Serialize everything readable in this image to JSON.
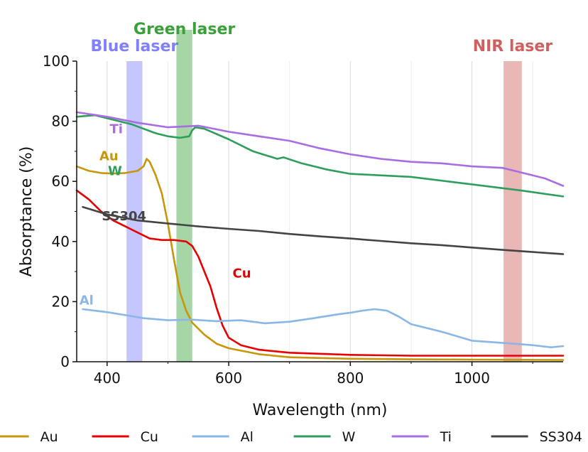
{
  "chart_data": {
    "type": "line",
    "title": "",
    "xlabel": "Wavelength (nm)",
    "ylabel": "Absorptance (%)",
    "xlim": [
      350,
      1150
    ],
    "ylim": [
      0,
      100
    ],
    "xticks": [
      400,
      600,
      800,
      1000
    ],
    "yticks": [
      0,
      20,
      40,
      60,
      80,
      100
    ],
    "grid": "vertical",
    "legend_position": "bottom",
    "bands": [
      {
        "name": "Blue laser",
        "range": [
          432,
          458
        ],
        "color": "#8080ff"
      },
      {
        "name": "Green laser",
        "range": [
          514,
          540
        ],
        "color": "#3aa13a"
      },
      {
        "name": "NIR laser",
        "range": [
          1052,
          1082
        ],
        "color": "#d06060"
      }
    ],
    "series": [
      {
        "name": "Au",
        "color": "#c8960a",
        "label_at": [
          378,
          67
        ],
        "x": [
          350,
          370,
          390,
          410,
          430,
          450,
          460,
          465,
          470,
          480,
          490,
          500,
          510,
          520,
          530,
          540,
          560,
          580,
          600,
          650,
          700,
          800,
          900,
          1000,
          1150
        ],
        "y": [
          65,
          63.5,
          62.8,
          62.6,
          62.8,
          63.5,
          65,
          67.5,
          66.5,
          62,
          56,
          46,
          34,
          23,
          17,
          13,
          9,
          6,
          4.5,
          2.5,
          1.5,
          1,
          0.8,
          0.7,
          0.6
        ]
      },
      {
        "name": "Cu",
        "color": "#e80000",
        "label_at": [
          597,
          28
        ],
        "x": [
          350,
          370,
          390,
          410,
          430,
          450,
          470,
          490,
          510,
          530,
          540,
          550,
          560,
          570,
          580,
          590,
          600,
          620,
          650,
          700,
          800,
          900,
          1000,
          1150
        ],
        "y": [
          57,
          54,
          50,
          47,
          45,
          43,
          41,
          40.5,
          40.5,
          40,
          38.5,
          35,
          30,
          25,
          18,
          12,
          8,
          5.5,
          4,
          3,
          2.3,
          2,
          2,
          2
        ]
      },
      {
        "name": "Al",
        "color": "#8ab6e8",
        "label_at": [
          345,
          19
        ],
        "x": [
          360,
          400,
          430,
          460,
          500,
          540,
          580,
          620,
          660,
          700,
          740,
          780,
          800,
          820,
          840,
          860,
          880,
          900,
          950,
          1000,
          1050,
          1100,
          1130,
          1150
        ],
        "y": [
          17.5,
          16.5,
          15.5,
          14.5,
          13.8,
          14,
          13.5,
          13.8,
          12.8,
          13.3,
          14.5,
          15.8,
          16.3,
          17,
          17.5,
          17,
          15,
          12.5,
          10,
          7,
          6.3,
          5.5,
          4.8,
          5.2
        ]
      },
      {
        "name": "W",
        "color": "#2e9e5c",
        "label_at": [
          392,
          62
        ],
        "x": [
          350,
          380,
          400,
          420,
          440,
          460,
          480,
          500,
          520,
          535,
          540,
          545,
          560,
          600,
          640,
          680,
          690,
          720,
          760,
          800,
          900,
          1000,
          1080,
          1150
        ],
        "y": [
          81.5,
          82,
          81,
          80,
          79,
          77.5,
          76,
          75,
          74.5,
          75,
          77,
          78,
          77.5,
          74,
          70,
          67.5,
          68,
          66,
          64,
          62.5,
          61.5,
          59,
          57,
          55
        ]
      },
      {
        "name": "Ti",
        "color": "#a86de0",
        "label_at": [
          395,
          76
        ],
        "x": [
          350,
          400,
          450,
          500,
          550,
          600,
          650,
          700,
          750,
          800,
          850,
          900,
          950,
          1000,
          1050,
          1080,
          1120,
          1150
        ],
        "y": [
          83,
          81.5,
          79.5,
          78,
          78.5,
          76.5,
          75,
          73.5,
          71,
          69,
          67.5,
          66.5,
          66,
          65,
          64.5,
          63,
          61,
          58.5
        ]
      },
      {
        "name": "SS304",
        "color": "#444444",
        "label_at": [
          382,
          47
        ],
        "x": [
          360,
          400,
          450,
          500,
          550,
          600,
          650,
          700,
          750,
          800,
          850,
          900,
          950,
          1000,
          1050,
          1100,
          1150
        ],
        "y": [
          51.5,
          49,
          47,
          46,
          45,
          44.2,
          43.5,
          42.5,
          41.7,
          41,
          40.2,
          39.4,
          38.8,
          38,
          37.2,
          36.5,
          35.8
        ]
      }
    ]
  }
}
